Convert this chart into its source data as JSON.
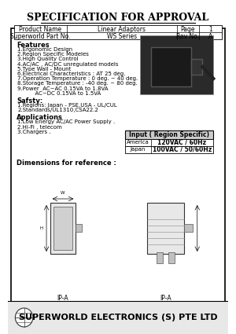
{
  "title": "SPECIFICATION FOR APPROVAL",
  "product_name": "Linear Adaptors",
  "page": "1",
  "superworld_part_no": "WS Series",
  "rev_no": "A",
  "features": [
    "1.Ergonomic Design",
    "2.Region Specific Modeles",
    "3.High Quality Control",
    "4.AC/AC , AC/DC unregulated models",
    "5.Type Wall - Mount",
    "6.Electrical Characteristics : AT 25 deg.",
    "7.Operation Temperature : 0 deg. ~ 40 deg.",
    "8.Storage Temperature : -40 deg. ~ 80 deg.",
    "9.Power  AC~AC 0.15VA to 1.8VA",
    "          AC~DC 0.15VA to 1.5VA"
  ],
  "safety": [
    "1.Regions: Japan - PSE,USA - UL/CUL",
    "2.Standards/UL1310,CSA22.2"
  ],
  "applications": [
    "1.Low Energy AC/AC Power Supply .",
    "2.Hi-Fi , telecom",
    "3.Chargers ."
  ],
  "input_table_header": "Input ( Region Specific)",
  "input_rows": [
    [
      "America",
      "120VAC / 60Hz"
    ],
    [
      "Japan",
      "100VAC / 50/60Hz"
    ]
  ],
  "dimensions_label": "Dimensions for reference :",
  "diagram_labels": [
    "IP-A",
    "IP-A"
  ],
  "footer_company": "SUPERWORLD ELECTRONICS (S) PTE LTD",
  "bg_color": "#ffffff",
  "border_color": "#000000",
  "text_color": "#000000",
  "table_header_bg": "#d0d0d0",
  "footer_bg": "#e8e8e8"
}
